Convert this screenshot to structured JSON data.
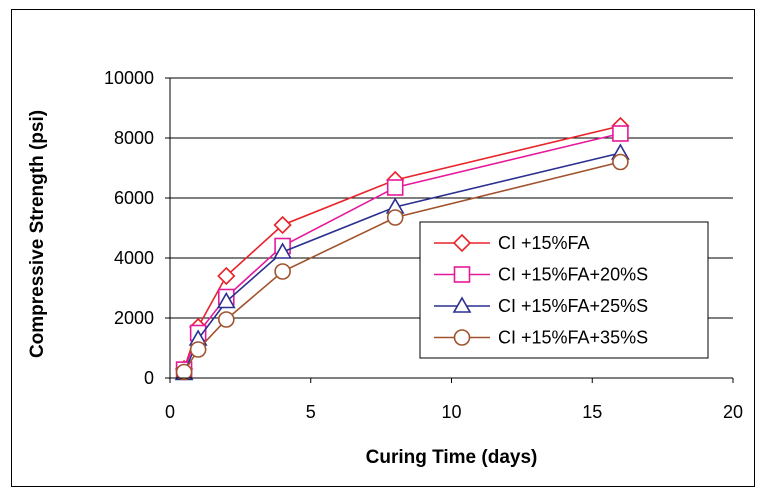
{
  "chart_data": {
    "type": "line",
    "title": "",
    "xlabel": "Curing Time (days)",
    "ylabel": "Compressive Strength (psi)",
    "xlim": [
      0,
      20
    ],
    "ylim": [
      0,
      10000
    ],
    "xticks": [
      0,
      5,
      10,
      15,
      20
    ],
    "yticks": [
      0,
      2000,
      4000,
      6000,
      8000,
      10000
    ],
    "grid": "horizontal",
    "legend_position": "center-right",
    "series": [
      {
        "name": "CI +15%FA",
        "color": "#e8232a",
        "marker": "diamond",
        "points": [
          [
            0.5,
            300
          ],
          [
            1,
            1700
          ],
          [
            2,
            3400
          ],
          [
            4,
            5100
          ],
          [
            8,
            6600
          ],
          [
            16,
            8400
          ]
        ]
      },
      {
        "name": "CI +15%FA+20%S",
        "color": "#e6199b",
        "marker": "square",
        "points": [
          [
            0.5,
            280
          ],
          [
            1,
            1500
          ],
          [
            2,
            2700
          ],
          [
            4,
            4400
          ],
          [
            8,
            6350
          ],
          [
            16,
            8150
          ]
        ]
      },
      {
        "name": "CI +15%FA+25%S",
        "color": "#2b2f8f",
        "marker": "triangle",
        "points": [
          [
            0.5,
            150
          ],
          [
            1,
            1300
          ],
          [
            2,
            2550
          ],
          [
            4,
            4200
          ],
          [
            8,
            5700
          ],
          [
            16,
            7500
          ]
        ]
      },
      {
        "name": "CI +15%FA+35%S",
        "color": "#a0522d",
        "marker": "circle",
        "points": [
          [
            0.5,
            200
          ],
          [
            1,
            950
          ],
          [
            2,
            1950
          ],
          [
            4,
            3550
          ],
          [
            8,
            5350
          ],
          [
            16,
            7200
          ]
        ]
      }
    ]
  }
}
